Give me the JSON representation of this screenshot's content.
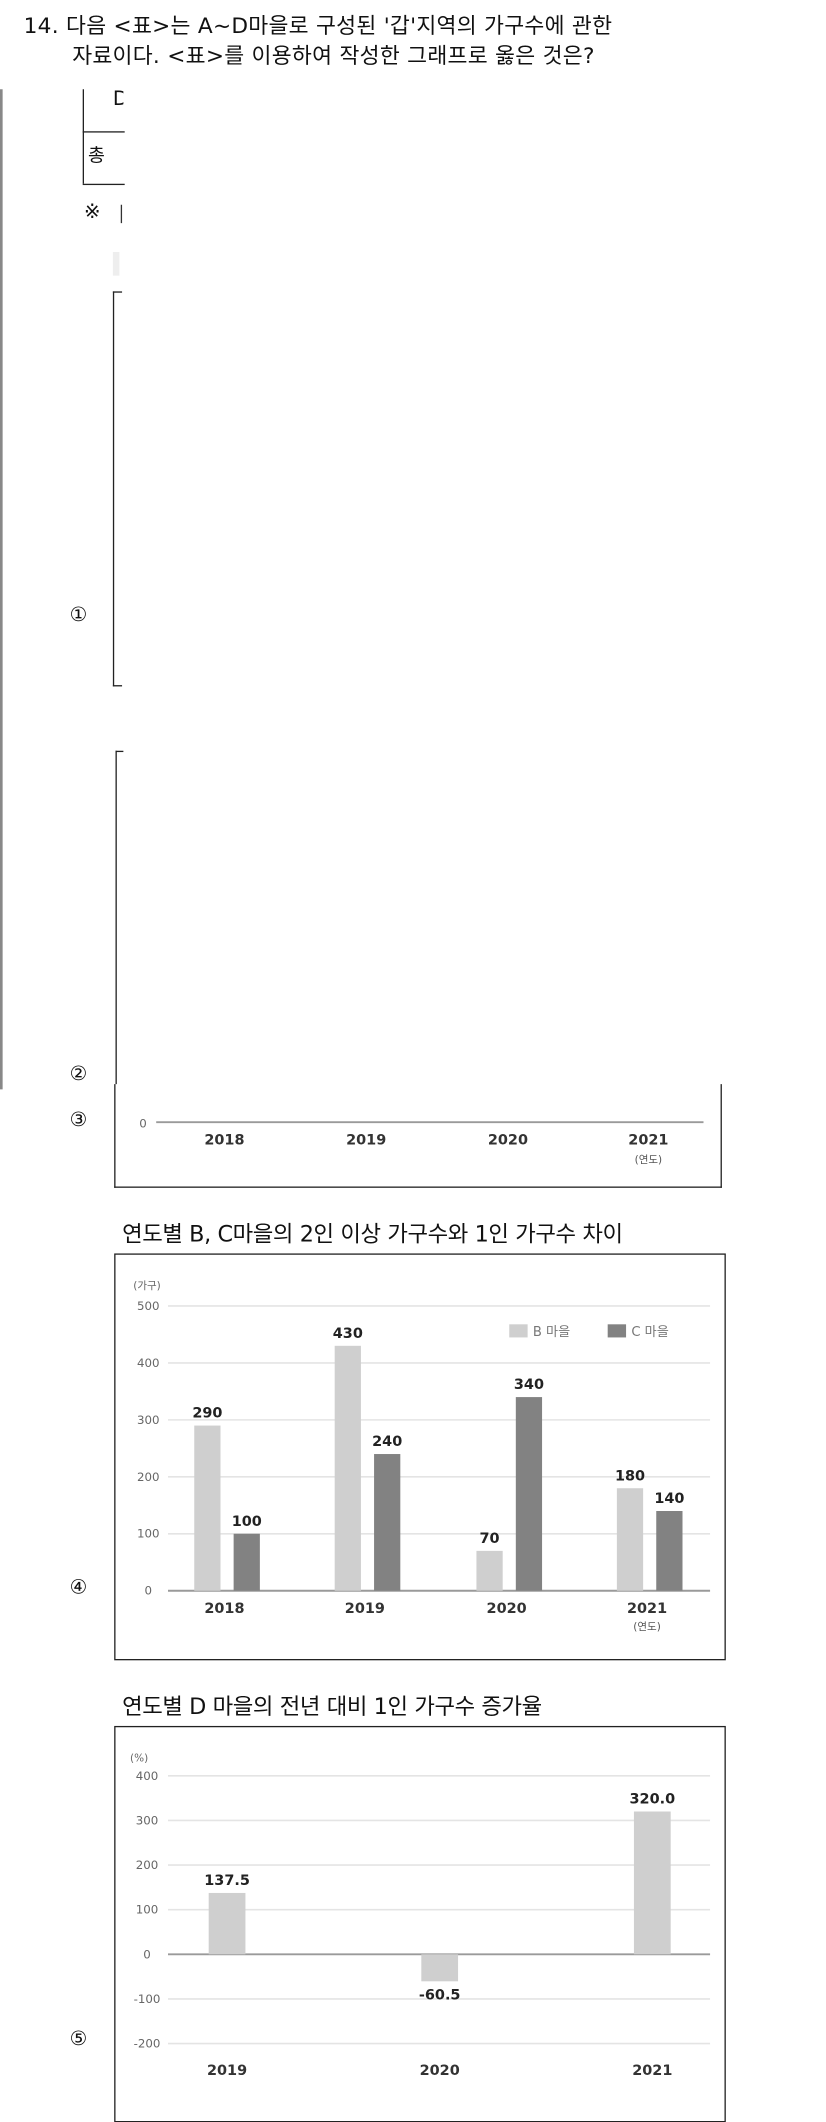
{
  "question": {
    "number": "14.",
    "line1": "다음 <표>는 A~D마을로 구성된 '갑'지역의 가구수에 관한",
    "line2": "자료이다. <표>를 이용하여 작성한 그래프로 옳은 것은?"
  },
  "table_fragment": {
    "row_label_d": "D",
    "row_label_total": "총",
    "note_mark": "※"
  },
  "options": {
    "o1": "①",
    "o2": "②",
    "o3": "③",
    "o4": "④",
    "o5": "⑤"
  },
  "colors": {
    "b_village": "#cfcfcf",
    "c_village": "#828282",
    "d_bar": "#cfcfcf",
    "gridline": "#e4e4e4",
    "axis": "#9a9a9a"
  },
  "chart_data": [
    {
      "id": "option3",
      "type": "bar",
      "title": "",
      "categories": [
        "2018",
        "2019",
        "2020",
        "2021"
      ],
      "x_unit": "(연도)",
      "visible_ticks": [
        "0"
      ],
      "series": []
    },
    {
      "id": "option4",
      "type": "bar",
      "title": "연도별 B, C마을의 2인 이상 가구수와 1인 가구수 차이",
      "ylabel": "(가구)",
      "x_unit": "(연도)",
      "ylim": [
        0,
        500
      ],
      "yticks": [
        "0",
        "100",
        "200",
        "300",
        "400",
        "500"
      ],
      "grid": true,
      "legend": "top-right",
      "categories": [
        "2018",
        "2019",
        "2020",
        "2021"
      ],
      "series": [
        {
          "name": "B 마을",
          "values": [
            290,
            430,
            70,
            180
          ],
          "labels": [
            "290",
            "430",
            "70",
            "180"
          ]
        },
        {
          "name": "C 마을",
          "values": [
            100,
            240,
            340,
            140
          ],
          "labels": [
            "100",
            "240",
            "340",
            "140"
          ]
        }
      ]
    },
    {
      "id": "option5",
      "type": "bar",
      "title": "연도별 D 마을의 전년 대비 1인 가구수 증가율",
      "ylabel": "(%)",
      "ylim": [
        -200,
        400
      ],
      "yticks": [
        "400",
        "300",
        "200",
        "100",
        "0",
        "-100",
        "-200"
      ],
      "grid": true,
      "categories": [
        "2019",
        "2020",
        "2021"
      ],
      "series": [
        {
          "values": [
            137.5,
            -60.5,
            320.0
          ],
          "labels": [
            "137.5",
            "-60.5",
            "320.0"
          ]
        }
      ]
    }
  ]
}
